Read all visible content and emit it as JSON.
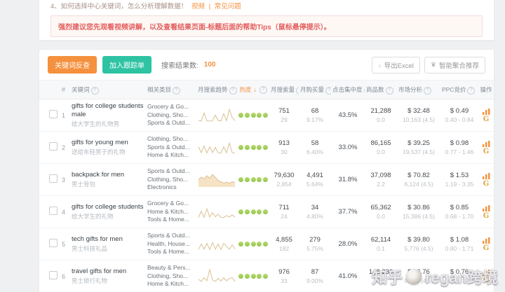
{
  "notice": {
    "item_text": "4、如何选择中心关键词，怎么分析理解数据！",
    "link_video": "视频",
    "link_sep": "|",
    "link_faq": "常见问题",
    "alert": "强烈建议您先观看视频讲解，以及查看结果页面-标题后面的帮助Tips（鼠标悬停提示）。"
  },
  "toolbar": {
    "btn_primary": "关键词反查",
    "btn_secondary": "加入跟踪单",
    "result_label": "搜索结果数:",
    "result_count": "100",
    "btn_export": "导出Excel",
    "btn_smart": "智能聚合推荐"
  },
  "icons": {
    "download": "↓",
    "crown": "♛",
    "info": "?",
    "sort_desc": "↓",
    "caret_down": "∨",
    "google_g": "G"
  },
  "colors": {
    "accent_orange": "#f5913e",
    "teal": "#2ec3a3",
    "heat_green": "#8cc043",
    "alert_red": "#e25d5d",
    "spark_line": "#d9c193",
    "spark_fill": "#f6e3c5"
  },
  "table": {
    "headers": [
      {
        "key": "index",
        "label": "#"
      },
      {
        "key": "keyword",
        "label": "关键词",
        "info": true
      },
      {
        "key": "category",
        "label": "相关类目",
        "info": true
      },
      {
        "key": "trend",
        "label": "月搜索趋势",
        "info": true,
        "caret": true
      },
      {
        "key": "heat",
        "label": "热度",
        "sort": "desc",
        "info": true,
        "accent": true
      },
      {
        "key": "search",
        "label": "月搜索量",
        "info": true
      },
      {
        "key": "purchase",
        "label": "月购买量",
        "info": true
      },
      {
        "key": "click",
        "label": "点击集中度",
        "info": true
      },
      {
        "key": "products",
        "label": "商品数",
        "info": true
      },
      {
        "key": "market",
        "label": "市场分析",
        "info": true
      },
      {
        "key": "ppc",
        "label": "PPC竞价",
        "info": true
      },
      {
        "key": "action",
        "label": "操作"
      }
    ],
    "rows": [
      {
        "index": "1",
        "keyword": "gifts for college students male",
        "keyword_cn": "给大学生的礼物男",
        "categories": [
          "Grocery & Go...",
          "Clothing, Sho...",
          "Sports & Outd..."
        ],
        "trend": {
          "filled": false,
          "points": [
            0.08,
            0.05,
            0.6,
            0.08,
            0.05,
            0.06,
            0.45,
            0.1,
            0.05,
            0.55,
            0.08,
            0.85,
            0.3,
            0.08
          ]
        },
        "heat": 5,
        "search": {
          "main": "751",
          "sub": "29"
        },
        "purchase": {
          "main": "68",
          "sub": "9.17%"
        },
        "click_rate": "43.5%",
        "products": {
          "main": "21,288",
          "sub": "0.0"
        },
        "market": {
          "main": "$ 32.48",
          "sub": "10,163 (4.5)"
        },
        "ppc": {
          "main": "$ 0.49",
          "sub": "0.40 - 0.84"
        }
      },
      {
        "index": "2",
        "keyword": "gifts for young men",
        "keyword_cn": "送给年轻男子的礼物",
        "categories": [
          "Clothing, Sho...",
          "Sports & Outd...",
          "Home & Kitch..."
        ],
        "trend": {
          "filled": false,
          "points": [
            0.5,
            0.1,
            0.55,
            0.08,
            0.5,
            0.1,
            0.45,
            0.08,
            0.06,
            0.5,
            0.08,
            0.75,
            0.1,
            0.06
          ]
        },
        "heat": 5,
        "search": {
          "main": "913",
          "sub": "30"
        },
        "purchase": {
          "main": "58",
          "sub": "6.40%"
        },
        "click_rate": "33.0%",
        "products": {
          "main": "86,165",
          "sub": "0.0"
        },
        "market": {
          "main": "$ 39.25",
          "sub": "19,537 (4.5)"
        },
        "ppc": {
          "main": "$ 0.98",
          "sub": "0.77 - 1.46"
        }
      },
      {
        "index": "3",
        "keyword": "backpack for men",
        "keyword_cn": "男士背包",
        "categories": [
          "Sports & Outd...",
          "Clothing, Sho...",
          "Electronics"
        ],
        "trend": {
          "filled": true,
          "points": [
            0.45,
            0.62,
            0.5,
            0.72,
            0.55,
            0.8,
            0.6,
            0.4,
            0.3,
            0.22,
            0.28,
            0.2,
            0.3,
            0.26
          ]
        },
        "heat": 5,
        "search": {
          "main": "79,630",
          "sub": "2,854"
        },
        "purchase": {
          "main": "4,491",
          "sub": "5.64%"
        },
        "click_rate": "31.8%",
        "products": {
          "main": "37,098",
          "sub": "2.2"
        },
        "market": {
          "main": "$ 70.82",
          "sub": "6,124 (4.5)"
        },
        "ppc": {
          "main": "$ 1.53",
          "sub": "1.19 - 3.35"
        }
      },
      {
        "index": "4",
        "keyword": "gifts for college students",
        "keyword_cn": "给大学生的礼物",
        "categories": [
          "Grocery & Go...",
          "Home & Kitch...",
          "Tools & Home..."
        ],
        "trend": {
          "filled": false,
          "points": [
            0.06,
            0.5,
            0.08,
            0.65,
            0.1,
            0.4,
            0.12,
            0.3,
            0.08,
            0.06,
            0.2,
            0.1,
            0.25,
            0.08
          ]
        },
        "heat": 5,
        "search": {
          "main": "711",
          "sub": "24"
        },
        "purchase": {
          "main": "34",
          "sub": "4.80%"
        },
        "click_rate": "37.7%",
        "products": {
          "main": "65,362",
          "sub": "0.0"
        },
        "market": {
          "main": "$ 30.86",
          "sub": "15,386 (4.5)"
        },
        "ppc": {
          "main": "$ 0.85",
          "sub": "0.68 - 1.70"
        }
      },
      {
        "index": "5",
        "keyword": "tech gifts for men",
        "keyword_cn": "男士科技礼品",
        "categories": [
          "Sports & Outd...",
          "Health, House...",
          "Tools & Home..."
        ],
        "trend": {
          "filled": false,
          "points": [
            0.08,
            0.45,
            0.1,
            0.5,
            0.08,
            0.55,
            0.1,
            0.45,
            0.08,
            0.5,
            0.3,
            0.1,
            0.4,
            0.12
          ]
        },
        "heat": 5,
        "search": {
          "main": "4,855",
          "sub": "182"
        },
        "purchase": {
          "main": "279",
          "sub": "5.75%"
        },
        "click_rate": "28.0%",
        "products": {
          "main": "62,114",
          "sub": "0.1"
        },
        "market": {
          "main": "$ 39.80",
          "sub": "5,776 (4.5)"
        },
        "ppc": {
          "main": "$ 1.08",
          "sub": "0.80 - 1.71"
        }
      },
      {
        "index": "6",
        "keyword": "travel gifts for men",
        "keyword_cn": "男士旅行礼物",
        "categories": [
          "Beauty & Pers...",
          "Clothing, Sho...",
          "Home & Kitch..."
        ],
        "trend": {
          "filled": false,
          "points": [
            0.25,
            0.1,
            0.35,
            0.15,
            0.9,
            0.2,
            0.1,
            0.3,
            0.12,
            0.35,
            0.15,
            0.3,
            0.35,
            0.1
          ]
        },
        "heat": 5,
        "search": {
          "main": "976",
          "sub": "33"
        },
        "purchase": {
          "main": "87",
          "sub": "9.00%"
        },
        "click_rate": "41.0%",
        "products": {
          "main": "148,236",
          "sub": "0.0"
        },
        "market": {
          "main": "$ 36.76",
          "sub": "9,377 (4.5)"
        },
        "ppc": {
          "main": "$ 0.76",
          "sub": "0.58 - 1.26"
        }
      }
    ]
  },
  "watermark": {
    "prefix": "知乎",
    "handle": "regan跨境"
  }
}
